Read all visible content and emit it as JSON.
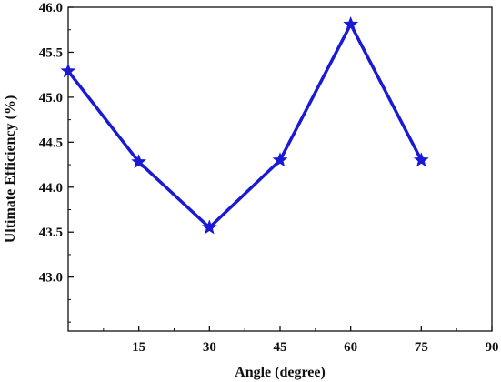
{
  "chart_data": {
    "type": "line",
    "title": "",
    "xlabel": "Angle (degree)",
    "ylabel": "Ultimate Efficiency (%)",
    "xlim": [
      0,
      90
    ],
    "ylim": [
      42.4,
      46.0
    ],
    "x_ticks": [
      15,
      30,
      45,
      60,
      75,
      90
    ],
    "y_ticks": [
      43.0,
      43.5,
      44.0,
      44.5,
      45.0,
      45.5,
      46.0
    ],
    "grid": false,
    "line_color": "#1a1ad6",
    "marker": "star",
    "series": [
      {
        "x": [
          0,
          15,
          30,
          45,
          60,
          75
        ],
        "y": [
          45.29,
          44.28,
          43.55,
          44.3,
          45.81,
          44.3
        ]
      }
    ]
  }
}
